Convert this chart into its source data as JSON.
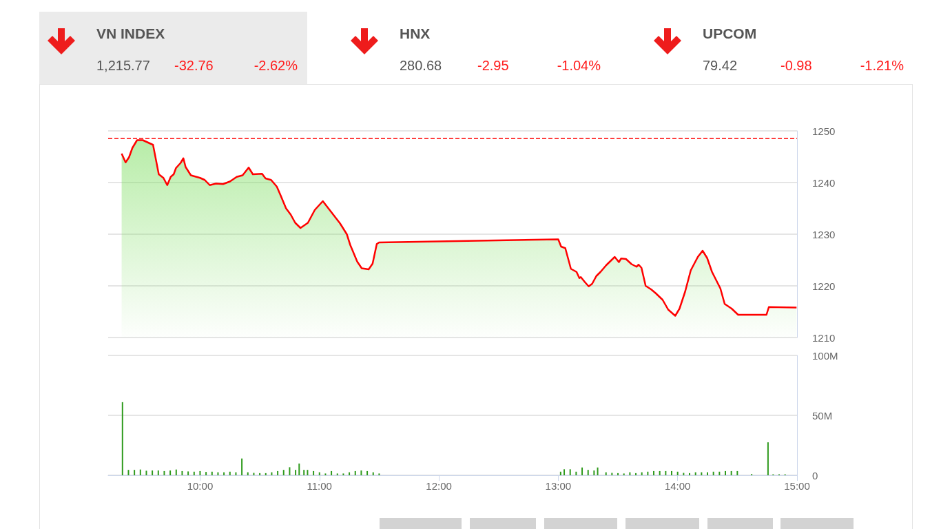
{
  "chart_data": [
    {
      "type": "other",
      "title": "VN INDEX",
      "annotations": [
        "1,215.77",
        "-32.76",
        "-2.62%"
      ]
    },
    {
      "type": "other",
      "title": "HNX",
      "annotations": [
        "280.68",
        "-2.95",
        "-1.04%"
      ]
    },
    {
      "type": "other",
      "title": "UPCOM",
      "annotations": [
        "79.42",
        "-0.98",
        "-1.21%"
      ]
    },
    {
      "type": "area",
      "color": "#ff0000",
      "marker": "none",
      "line_style": "solid",
      "grid": "y",
      "tick_labels": "y",
      "xlim": [
        9.23,
        15
      ],
      "ylim": [
        1210,
        1250
      ],
      "yticks": [
        1210,
        1220,
        1230,
        1240,
        1250
      ],
      "ref_lines": [
        {
          "axis": "y",
          "value": 1248.53,
          "color": "#ff0000",
          "line_style": "dashed"
        }
      ],
      "x": [
        9.343,
        9.376,
        9.405,
        9.433,
        9.472,
        9.52,
        9.549,
        9.606,
        9.654,
        9.693,
        9.725,
        9.754,
        9.779,
        9.798,
        9.837,
        9.86,
        9.879,
        9.923,
        10.0,
        10.039,
        10.081,
        10.134,
        10.192,
        10.25,
        10.307,
        10.356,
        10.407,
        10.442,
        10.519,
        10.548,
        10.595,
        10.643,
        10.673,
        10.72,
        10.759,
        10.797,
        10.841,
        10.903,
        10.961,
        11.028,
        11.105,
        11.172,
        11.229,
        11.258,
        11.316,
        11.354,
        11.412,
        11.445,
        11.48,
        11.499,
        13.0,
        13.024,
        13.059,
        13.106,
        13.153,
        13.177,
        13.189,
        13.224,
        13.255,
        13.284,
        13.319,
        13.354,
        13.402,
        13.473,
        13.508,
        13.527,
        13.567,
        13.614,
        13.656,
        13.673,
        13.697,
        13.732,
        13.779,
        13.815,
        13.874,
        13.921,
        13.98,
        14.016,
        14.063,
        14.11,
        14.169,
        14.209,
        14.247,
        14.288,
        14.358,
        14.394,
        14.452,
        14.507,
        14.744,
        14.764,
        14.996
      ],
      "values": [
        1245.6,
        1243.9,
        1244.9,
        1246.7,
        1248.2,
        1248.2,
        1247.9,
        1247.3,
        1241.6,
        1240.9,
        1239.5,
        1241.1,
        1241.6,
        1242.8,
        1243.8,
        1244.7,
        1243.0,
        1241.4,
        1240.9,
        1240.5,
        1239.5,
        1239.8,
        1239.7,
        1240.2,
        1241.1,
        1241.4,
        1242.9,
        1241.6,
        1241.7,
        1240.8,
        1240.5,
        1239.2,
        1237.6,
        1235.0,
        1233.8,
        1232.2,
        1231.2,
        1232.2,
        1234.7,
        1236.4,
        1234.1,
        1232.1,
        1230.0,
        1227.9,
        1224.7,
        1223.4,
        1223.2,
        1224.3,
        1228.1,
        1228.4,
        1229.0,
        1227.6,
        1227.3,
        1223.3,
        1222.7,
        1221.5,
        1221.7,
        1220.7,
        1219.9,
        1220.4,
        1221.9,
        1222.7,
        1224.0,
        1225.6,
        1224.6,
        1225.3,
        1225.2,
        1224.2,
        1223.7,
        1224.1,
        1223.5,
        1220.0,
        1219.3,
        1218.6,
        1217.3,
        1215.4,
        1214.2,
        1215.6,
        1218.9,
        1223.0,
        1225.6,
        1226.8,
        1225.4,
        1222.7,
        1219.5,
        1216.5,
        1215.6,
        1214.4,
        1214.4,
        1215.9,
        1215.8
      ]
    },
    {
      "type": "bar",
      "color": "#2e9a1c",
      "grid": "y",
      "xlim": [
        9.23,
        15
      ],
      "xticks": [
        {
          "value": 10,
          "label": "10:00"
        },
        {
          "value": 11,
          "label": "11:00"
        },
        {
          "value": 12,
          "label": "12:00"
        },
        {
          "value": 13,
          "label": "13:00"
        },
        {
          "value": 14,
          "label": "14:00"
        },
        {
          "value": 15,
          "label": "15:00"
        }
      ],
      "ylim": [
        0,
        100
      ],
      "yticks": [
        0,
        {
          "value": 50,
          "label": "50M"
        },
        {
          "value": 100,
          "label": "100M"
        }
      ],
      "x": [
        9.35,
        9.4,
        9.45,
        9.5,
        9.55,
        9.6,
        9.65,
        9.7,
        9.75,
        9.8,
        9.85,
        9.9,
        9.95,
        10.0,
        10.05,
        10.1,
        10.15,
        10.2,
        10.25,
        10.3,
        10.35,
        10.4,
        10.45,
        10.5,
        10.55,
        10.6,
        10.65,
        10.7,
        10.75,
        10.8,
        10.83,
        10.87,
        10.9,
        10.95,
        11.0,
        11.05,
        11.1,
        11.15,
        11.2,
        11.25,
        11.3,
        11.35,
        11.4,
        11.45,
        11.5,
        13.02,
        13.05,
        13.1,
        13.15,
        13.2,
        13.25,
        13.3,
        13.33,
        13.4,
        13.45,
        13.5,
        13.55,
        13.6,
        13.65,
        13.7,
        13.75,
        13.8,
        13.85,
        13.9,
        13.95,
        14.0,
        14.05,
        14.1,
        14.15,
        14.2,
        14.25,
        14.3,
        14.35,
        14.4,
        14.45,
        14.5,
        14.62,
        14.757,
        14.8,
        14.85,
        14.9
      ],
      "values": [
        61,
        4.5,
        4.5,
        4.8,
        3.8,
        4.0,
        4.0,
        3.5,
        4.0,
        4.8,
        3.5,
        3.2,
        3.0,
        3.5,
        2.8,
        3.0,
        2.5,
        2.5,
        3.0,
        2.5,
        14,
        2.5,
        2.0,
        1.8,
        1.8,
        2.5,
        3.5,
        4.5,
        6.7,
        4.5,
        9.8,
        4.5,
        4.5,
        3.5,
        2.5,
        1.5,
        3.5,
        1.5,
        1.5,
        2.5,
        3.5,
        4.0,
        3.5,
        2.5,
        1.5,
        3,
        5,
        5,
        3,
        6.5,
        4.5,
        4,
        6.5,
        2.5,
        2,
        1.8,
        1.5,
        2.5,
        1.8,
        2.5,
        3,
        3.5,
        3.5,
        3.5,
        3.5,
        3,
        2,
        1.8,
        2.5,
        2.5,
        2.5,
        3,
        3,
        3.5,
        3.5,
        3.5,
        1,
        27.5,
        0.8,
        0.8,
        0.8
      ]
    }
  ]
}
